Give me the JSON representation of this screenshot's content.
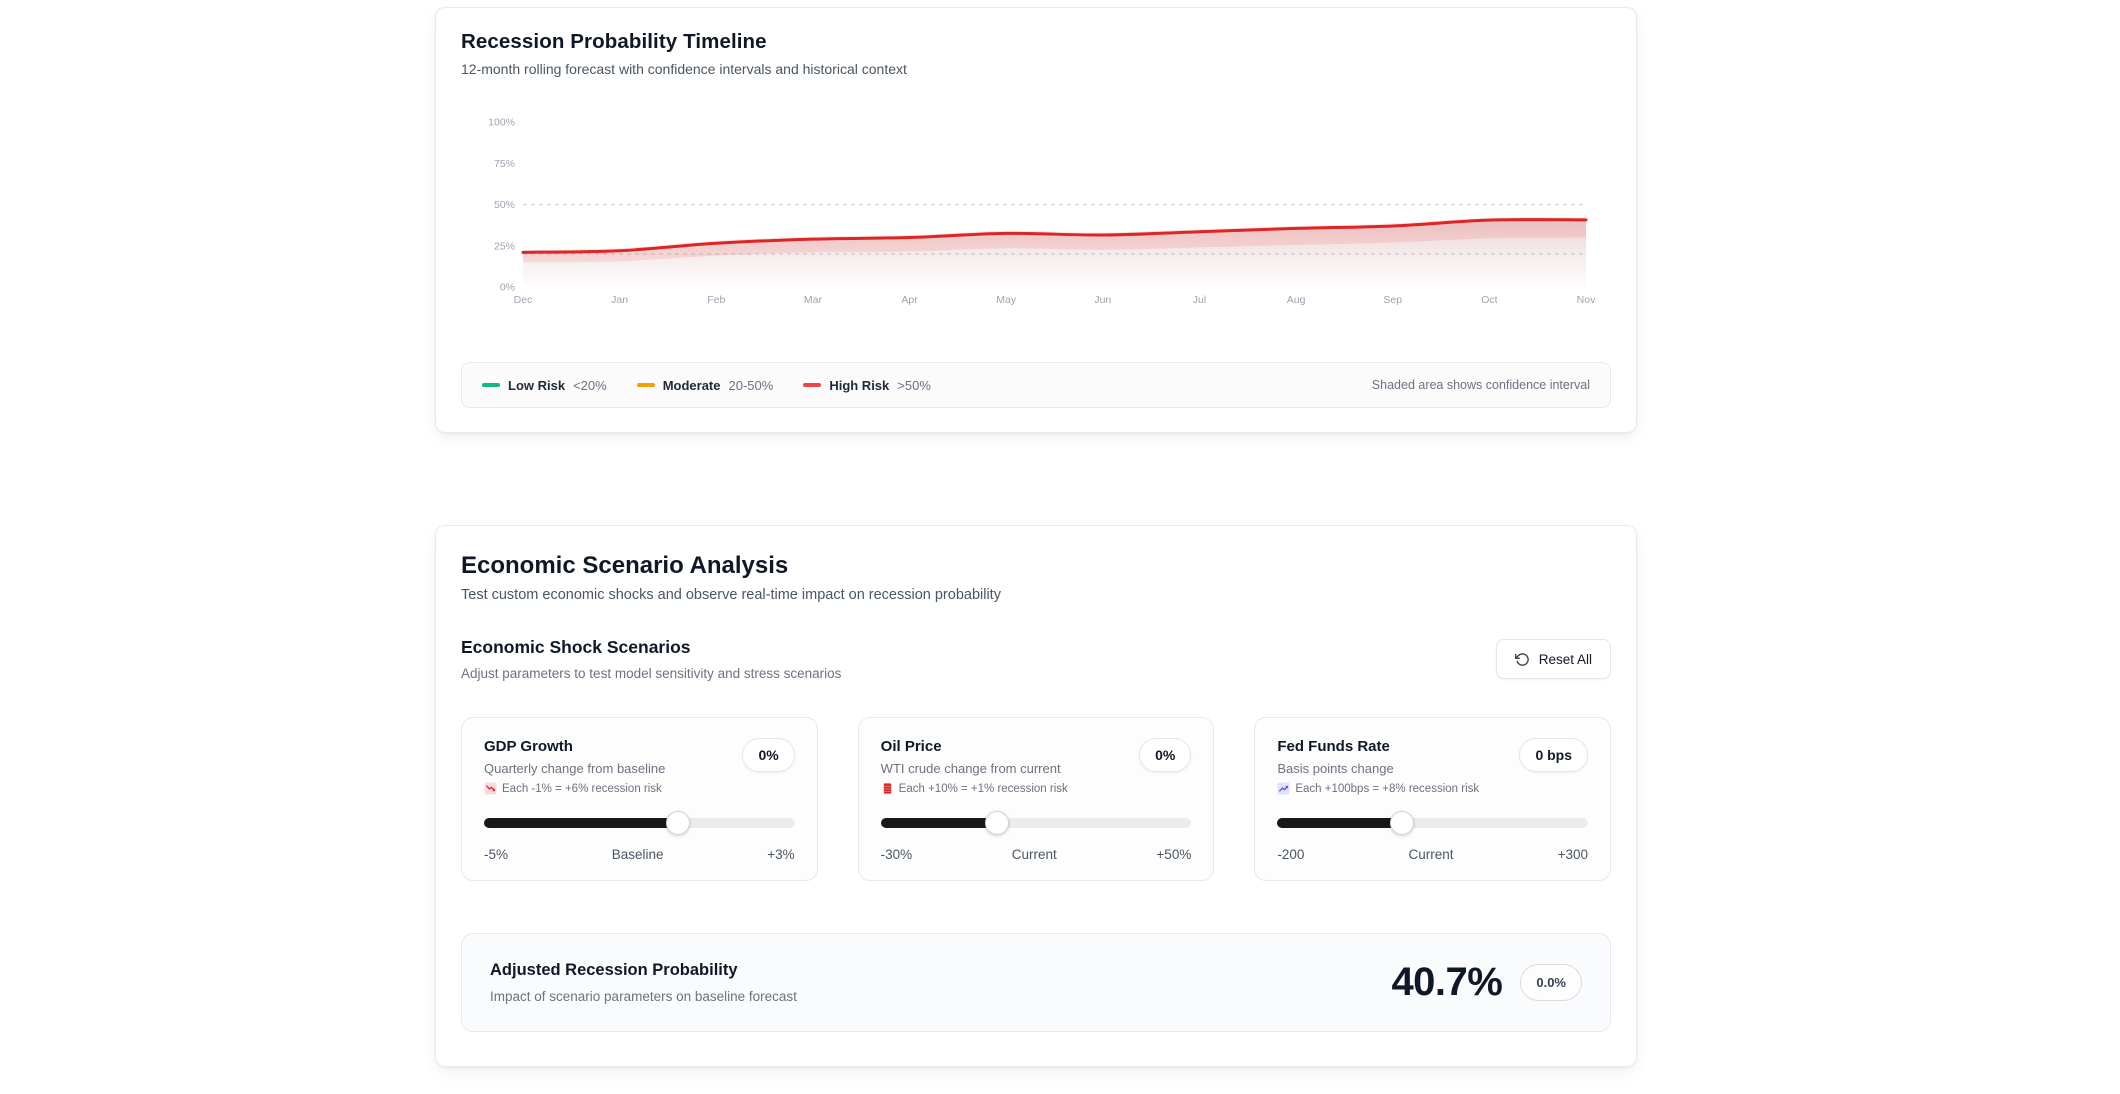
{
  "timeline_card": {
    "title": "Recession Probability Timeline",
    "subtitle": "12-month rolling forecast with confidence intervals and historical context",
    "legend": [
      {
        "label": "Low Risk",
        "range": "<20%",
        "color": "#10b981"
      },
      {
        "label": "Moderate",
        "range": "20-50%",
        "color": "#f59e0b"
      },
      {
        "label": "High Risk",
        "range": ">50%",
        "color": "#ef4444"
      }
    ],
    "legend_note": "Shaded area shows confidence interval"
  },
  "chart_data": {
    "type": "area",
    "title": "Recession Probability Timeline",
    "x": [
      "Dec",
      "Jan",
      "Feb",
      "Mar",
      "Apr",
      "May",
      "Jun",
      "Jul",
      "Aug",
      "Sep",
      "Oct",
      "Nov"
    ],
    "series": [
      {
        "name": "Recession probability (%)",
        "values": [
          21,
          22,
          26.5,
          29,
          30,
          32.5,
          31.5,
          33.5,
          35.5,
          37,
          40.5,
          40.7
        ]
      },
      {
        "name": "Confidence upper (%)",
        "values": [
          22.5,
          23.5,
          28,
          30.5,
          31.5,
          34,
          33,
          35,
          37,
          38.5,
          42,
          42.2
        ]
      },
      {
        "name": "Confidence lower (%)",
        "values": [
          15,
          15.5,
          19,
          21,
          21.5,
          23.5,
          22.5,
          24,
          25.5,
          27,
          29.5,
          30
        ]
      }
    ],
    "ylim": [
      0,
      100
    ],
    "yticks": [
      0,
      25,
      50,
      75,
      100
    ],
    "ytick_labels": [
      "0%",
      "25%",
      "50%",
      "75%",
      "100%"
    ],
    "threshold_lines": [
      50,
      20
    ],
    "line_color": "#dc2626",
    "band_color": "#ef4444",
    "grid_color": "#d1d5db",
    "axis_text_color": "#9ca3af",
    "legend_position": "bottom"
  },
  "scenario_card": {
    "title": "Economic Scenario Analysis",
    "subtitle": "Test custom economic shocks and observe real-time impact on recession probability",
    "section_title": "Economic Shock Scenarios",
    "section_subtitle": "Adjust parameters to test model sensitivity and stress scenarios",
    "reset_button_label": "Reset All",
    "sliders": [
      {
        "name": "GDP Growth",
        "description": "Quarterly change from baseline",
        "impact": "Each -1% = +6% recession risk",
        "icon": "chart-decreasing-icon",
        "value_label": "0%",
        "min_label": "-5%",
        "mid_label": "Baseline",
        "max_label": "+3%",
        "fill_pct": 62.5
      },
      {
        "name": "Oil Price",
        "description": "WTI crude change from current",
        "impact": "Each +10% = +1% recession risk",
        "icon": "oil-drum-icon",
        "value_label": "0%",
        "min_label": "-30%",
        "mid_label": "Current",
        "max_label": "+50%",
        "fill_pct": 37.5
      },
      {
        "name": "Fed Funds Rate",
        "description": "Basis points change",
        "impact": "Each +100bps = +8% recession risk",
        "icon": "chart-increasing-icon",
        "value_label": "0 bps",
        "min_label": "-200",
        "mid_label": "Current",
        "max_label": "+300",
        "fill_pct": 40
      }
    ],
    "result": {
      "title": "Adjusted Recession Probability",
      "subtitle": "Impact of scenario parameters on baseline forecast",
      "value": "40.7%",
      "delta": "0.0%"
    }
  }
}
